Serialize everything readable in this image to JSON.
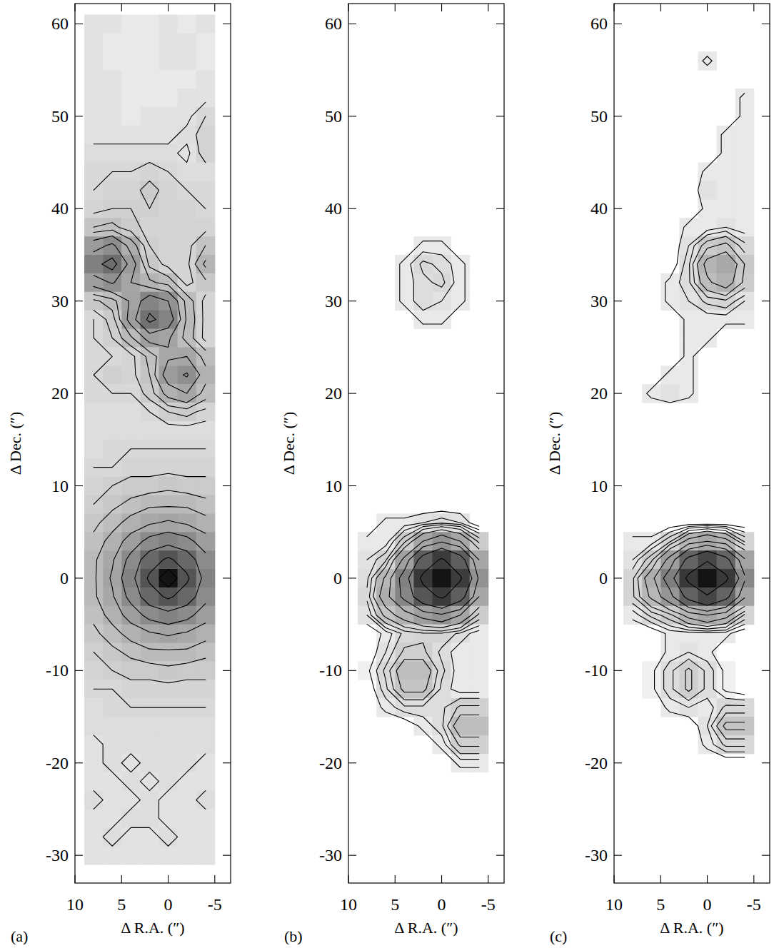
{
  "chart_data": [
    {
      "type": "heatmap",
      "panel_label": "(a)",
      "x_label": "Δ R.A. (″)",
      "y_label": "Δ Dec. (″)",
      "xlim": [
        10,
        -6.7
      ],
      "ylim": [
        -33,
        62.2
      ],
      "xticks": [
        10,
        5,
        0,
        -5
      ],
      "yticks": [
        -30,
        -20,
        -10,
        0,
        10,
        20,
        30,
        40,
        50,
        60
      ],
      "zlim": [
        0,
        100
      ],
      "contour_levels": [
        3.5,
        5,
        7,
        10,
        14,
        20,
        28,
        40,
        56,
        80
      ],
      "x": [
        8,
        6,
        4,
        2,
        0,
        -2,
        -4
      ],
      "y": [
        60,
        58,
        56,
        54,
        52,
        50,
        48,
        46,
        44,
        42,
        40,
        38,
        36,
        34,
        32,
        30,
        28,
        26,
        24,
        22,
        20,
        18,
        16,
        14,
        12,
        10,
        8,
        6,
        4,
        2,
        0,
        -2,
        -4,
        -6,
        -8,
        -10,
        -12,
        -14,
        -16,
        -18,
        -20,
        -22,
        -24,
        -26,
        -28,
        -30
      ],
      "z": [
        [
          3,
          3,
          2,
          2,
          3,
          2,
          3
        ],
        [
          3,
          2,
          2,
          2,
          3,
          3,
          2
        ],
        [
          3,
          2,
          2,
          2,
          3,
          3,
          2
        ],
        [
          3,
          3,
          2,
          2,
          2,
          2,
          3
        ],
        [
          3,
          3,
          2,
          2,
          2,
          3,
          3
        ],
        [
          3,
          3,
          2,
          3,
          3,
          3,
          5
        ],
        [
          3,
          3,
          3,
          3,
          3,
          4,
          6
        ],
        [
          4,
          4,
          4,
          4,
          4,
          3,
          6
        ],
        [
          5,
          5,
          5,
          6,
          5,
          4,
          4
        ],
        [
          5,
          6,
          6,
          8,
          6,
          5,
          5
        ],
        [
          6,
          7,
          7,
          7,
          6,
          6,
          5
        ],
        [
          10,
          11,
          8,
          6,
          6,
          6,
          6
        ],
        [
          24,
          30,
          17,
          7,
          6,
          6,
          10
        ],
        [
          36,
          45,
          24,
          9,
          6,
          6,
          15
        ],
        [
          23,
          29,
          20,
          15,
          12,
          6,
          9
        ],
        [
          9,
          12,
          21,
          34,
          28,
          12,
          6
        ],
        [
          5,
          8,
          23,
          43,
          34,
          13,
          6
        ],
        [
          5,
          7,
          13,
          23,
          21,
          12,
          6
        ],
        [
          5,
          5,
          6,
          11,
          19,
          20,
          12
        ],
        [
          5,
          7,
          6,
          10,
          24,
          29,
          16
        ],
        [
          5,
          5,
          5,
          8,
          16,
          20,
          12
        ],
        [
          4,
          4,
          4,
          5,
          7,
          8,
          6
        ],
        [
          4,
          4,
          4,
          4,
          4,
          4,
          4
        ],
        [
          4,
          5,
          5,
          5,
          5,
          5,
          5
        ],
        [
          5,
          5,
          6,
          6,
          6,
          6,
          6
        ],
        [
          6,
          7,
          8,
          8,
          9,
          8,
          8
        ],
        [
          7,
          9,
          11,
          13,
          13,
          13,
          11
        ],
        [
          9,
          12,
          16,
          19,
          21,
          19,
          16
        ],
        [
          11,
          16,
          23,
          31,
          35,
          31,
          23
        ],
        [
          13,
          19,
          31,
          48,
          59,
          48,
          31
        ],
        [
          13,
          21,
          35,
          59,
          100,
          59,
          35
        ],
        [
          13,
          19,
          31,
          48,
          59,
          48,
          31
        ],
        [
          11,
          16,
          23,
          31,
          35,
          31,
          23
        ],
        [
          9,
          12,
          16,
          19,
          21,
          19,
          16
        ],
        [
          7,
          9,
          11,
          13,
          13,
          13,
          11
        ],
        [
          6,
          7,
          8,
          8,
          9,
          8,
          8
        ],
        [
          5,
          5,
          6,
          6,
          6,
          6,
          6
        ],
        [
          4,
          5,
          5,
          5,
          5,
          5,
          5
        ],
        [
          4,
          4,
          4,
          4,
          4,
          4,
          4
        ],
        [
          3,
          4,
          4,
          4,
          4,
          4,
          4
        ],
        [
          3,
          4,
          3,
          4,
          4,
          4,
          3
        ],
        [
          3,
          3,
          4,
          3,
          4,
          3,
          3
        ],
        [
          4,
          3,
          3,
          4,
          3,
          3,
          4
        ],
        [
          3,
          3,
          4,
          4,
          3,
          3,
          3
        ],
        [
          3,
          4,
          3,
          3,
          4,
          3,
          3
        ],
        [
          3,
          3,
          3,
          3,
          3,
          3,
          3
        ]
      ]
    },
    {
      "type": "heatmap",
      "panel_label": "(b)",
      "x_label": "Δ R.A. (″)",
      "y_label": "Δ Dec. (″)",
      "xlim": [
        10,
        -6.7
      ],
      "ylim": [
        -33,
        62.2
      ],
      "xticks": [
        10,
        5,
        0,
        -5
      ],
      "yticks": [
        -30,
        -20,
        -10,
        0,
        10,
        20,
        30,
        40,
        50,
        60
      ],
      "zlim": [
        0,
        100
      ],
      "contour_levels": [
        1.5,
        3,
        4.5,
        6.5,
        9,
        13,
        20,
        30,
        45,
        70
      ],
      "x": [
        8,
        6,
        4,
        2,
        0,
        -2,
        -4
      ],
      "y": [
        60,
        58,
        56,
        54,
        52,
        50,
        48,
        46,
        44,
        42,
        40,
        38,
        36,
        34,
        32,
        30,
        28,
        26,
        24,
        22,
        20,
        18,
        16,
        14,
        12,
        10,
        8,
        6,
        4,
        2,
        0,
        -2,
        -4,
        -6,
        -8,
        -10,
        -12,
        -14,
        -16,
        -18,
        -20,
        -22,
        -24,
        -26,
        -28,
        -30
      ],
      "z": [
        [
          0,
          0,
          0,
          0,
          0,
          0,
          0
        ],
        [
          0,
          0,
          0,
          0,
          0,
          0,
          0
        ],
        [
          0,
          0,
          0,
          0,
          0,
          0,
          0
        ],
        [
          0,
          0,
          0,
          0,
          0,
          0,
          0
        ],
        [
          0,
          0,
          0,
          0,
          0,
          0,
          0
        ],
        [
          0,
          0,
          0,
          0,
          0,
          0,
          0
        ],
        [
          0,
          0,
          0,
          0,
          0,
          0,
          0
        ],
        [
          0,
          0,
          0,
          0,
          0,
          0,
          0
        ],
        [
          0,
          0,
          0,
          0,
          0,
          0,
          0
        ],
        [
          0,
          0,
          0,
          0,
          0,
          0,
          0
        ],
        [
          0,
          0,
          0,
          0,
          0,
          0,
          0
        ],
        [
          0,
          0,
          0,
          0,
          0,
          0,
          0
        ],
        [
          0,
          0,
          0,
          2,
          2,
          0,
          0
        ],
        [
          0,
          0,
          2,
          5,
          4,
          2,
          0
        ],
        [
          0,
          0,
          2,
          4,
          5,
          2,
          0
        ],
        [
          0,
          0,
          2,
          4,
          3,
          2,
          0
        ],
        [
          0,
          0,
          0,
          2,
          2,
          0,
          0
        ],
        [
          0,
          0,
          0,
          0,
          0,
          0,
          0
        ],
        [
          0,
          0,
          0,
          0,
          0,
          0,
          0
        ],
        [
          0,
          0,
          0,
          0,
          0,
          0,
          0
        ],
        [
          0,
          0,
          0,
          0,
          0,
          0,
          0
        ],
        [
          0,
          0,
          0,
          0,
          0,
          0,
          0
        ],
        [
          0,
          0,
          0,
          0,
          0,
          0,
          0
        ],
        [
          0,
          0,
          0,
          0,
          0,
          0,
          0
        ],
        [
          0,
          0,
          0,
          0,
          0,
          0,
          0
        ],
        [
          0,
          0,
          0,
          0,
          0,
          0,
          0
        ],
        [
          0,
          0,
          0,
          0,
          0,
          0,
          0
        ],
        [
          0,
          2,
          2,
          3,
          4,
          3,
          0
        ],
        [
          2,
          2,
          8,
          20,
          28,
          20,
          8
        ],
        [
          3,
          6,
          22,
          53,
          73,
          53,
          20
        ],
        [
          4,
          14,
          36,
          76,
          100,
          73,
          28
        ],
        [
          5,
          17,
          33,
          58,
          74,
          53,
          20
        ],
        [
          3,
          10,
          16,
          23,
          28,
          20,
          8
        ],
        [
          0,
          2,
          5,
          6,
          6,
          4,
          2
        ],
        [
          0,
          3,
          7,
          7,
          4,
          2,
          2
        ],
        [
          1,
          5,
          12,
          12,
          5,
          2,
          2
        ],
        [
          0,
          4,
          10,
          10,
          4,
          2,
          2
        ],
        [
          0,
          2,
          4,
          4,
          4,
          7,
          7
        ],
        [
          0,
          0,
          0,
          2,
          4,
          12,
          12
        ],
        [
          0,
          0,
          0,
          0,
          2,
          7,
          7
        ],
        [
          0,
          0,
          0,
          0,
          0,
          2,
          2
        ],
        [
          0,
          0,
          0,
          0,
          0,
          0,
          0
        ],
        [
          0,
          0,
          0,
          0,
          0,
          0,
          0
        ],
        [
          0,
          0,
          0,
          0,
          0,
          0,
          0
        ],
        [
          0,
          0,
          0,
          0,
          0,
          0,
          0
        ],
        [
          0,
          0,
          0,
          0,
          0,
          0,
          0
        ]
      ]
    },
    {
      "type": "heatmap",
      "panel_label": "(c)",
      "x_label": "Δ R.A. (″)",
      "y_label": "Δ Dec. (″)",
      "xlim": [
        10,
        -6.7
      ],
      "ylim": [
        -33,
        62.2
      ],
      "xticks": [
        10,
        5,
        0,
        -5
      ],
      "yticks": [
        -30,
        -20,
        -10,
        0,
        10,
        20,
        30,
        40,
        50,
        60
      ],
      "zlim": [
        0,
        100
      ],
      "contour_levels": [
        1.5,
        3,
        4.5,
        6.5,
        9,
        13,
        20,
        30,
        45,
        70
      ],
      "x": [
        8,
        6,
        4,
        2,
        0,
        -2,
        -4
      ],
      "y": [
        60,
        58,
        56,
        54,
        52,
        50,
        48,
        46,
        44,
        42,
        40,
        38,
        36,
        34,
        32,
        30,
        28,
        26,
        24,
        22,
        20,
        18,
        16,
        14,
        12,
        10,
        8,
        6,
        4,
        2,
        0,
        -2,
        -4,
        -6,
        -8,
        -10,
        -12,
        -14,
        -16,
        -18,
        -20,
        -22,
        -24,
        -26,
        -28,
        -30
      ],
      "z": [
        [
          0,
          0,
          0,
          0,
          0,
          0,
          0
        ],
        [
          0,
          0,
          0,
          0,
          0,
          0,
          0
        ],
        [
          0,
          0,
          0,
          0,
          2,
          0,
          0
        ],
        [
          0,
          0,
          0,
          0,
          0,
          0,
          0
        ],
        [
          0,
          0,
          0,
          0,
          0,
          0,
          2
        ],
        [
          0,
          0,
          0,
          0,
          0,
          0,
          2
        ],
        [
          0,
          0,
          0,
          0,
          0,
          2,
          2
        ],
        [
          0,
          0,
          0,
          0,
          0,
          2,
          2
        ],
        [
          0,
          0,
          0,
          0,
          2,
          2,
          2
        ],
        [
          0,
          0,
          0,
          0,
          3,
          2,
          2
        ],
        [
          0,
          0,
          0,
          0,
          2,
          2,
          2
        ],
        [
          0,
          0,
          0,
          2,
          2,
          3,
          2
        ],
        [
          0,
          0,
          0,
          3,
          8,
          10,
          5
        ],
        [
          0,
          0,
          0,
          4,
          15,
          19,
          9
        ],
        [
          0,
          0,
          2,
          4,
          12,
          16,
          8
        ],
        [
          0,
          0,
          2,
          3,
          5,
          6,
          3
        ],
        [
          0,
          0,
          0,
          2,
          2,
          2,
          2
        ],
        [
          0,
          0,
          0,
          2,
          2,
          0,
          0
        ],
        [
          0,
          0,
          0,
          2,
          0,
          0,
          0
        ],
        [
          0,
          0,
          2,
          2,
          0,
          0,
          0
        ],
        [
          0,
          2,
          3,
          2,
          0,
          0,
          0
        ],
        [
          0,
          0,
          0,
          0,
          0,
          0,
          0
        ],
        [
          0,
          0,
          0,
          0,
          0,
          0,
          0
        ],
        [
          0,
          0,
          0,
          0,
          0,
          0,
          0
        ],
        [
          0,
          0,
          0,
          0,
          0,
          0,
          0
        ],
        [
          0,
          0,
          0,
          0,
          0,
          0,
          0
        ],
        [
          0,
          0,
          0,
          0,
          0,
          0,
          0
        ],
        [
          0,
          0,
          0,
          0,
          0,
          0,
          0
        ],
        [
          2,
          2,
          6,
          15,
          20,
          15,
          6
        ],
        [
          3,
          8,
          23,
          50,
          67,
          50,
          21
        ],
        [
          6,
          17,
          37,
          76,
          100,
          75,
          32
        ],
        [
          6,
          14,
          26,
          51,
          67,
          50,
          21
        ],
        [
          2,
          5,
          8,
          15,
          20,
          15,
          6
        ],
        [
          0,
          0,
          2,
          2,
          2,
          2,
          0
        ],
        [
          0,
          0,
          2,
          3,
          2,
          0,
          0
        ],
        [
          0,
          1,
          4,
          7,
          4,
          1,
          0
        ],
        [
          0,
          1,
          4,
          7,
          4,
          1,
          0
        ],
        [
          0,
          0,
          2,
          3,
          2,
          5,
          5
        ],
        [
          0,
          0,
          0,
          0,
          3,
          10,
          10
        ],
        [
          0,
          0,
          0,
          0,
          2,
          5,
          5
        ],
        [
          0,
          0,
          0,
          0,
          0,
          0,
          0
        ],
        [
          0,
          0,
          0,
          0,
          0,
          0,
          0
        ],
        [
          0,
          0,
          0,
          0,
          0,
          0,
          0
        ],
        [
          0,
          0,
          0,
          0,
          0,
          0,
          0
        ],
        [
          0,
          0,
          0,
          0,
          0,
          0,
          0
        ],
        [
          0,
          0,
          0,
          0,
          0,
          0,
          0
        ]
      ]
    }
  ]
}
